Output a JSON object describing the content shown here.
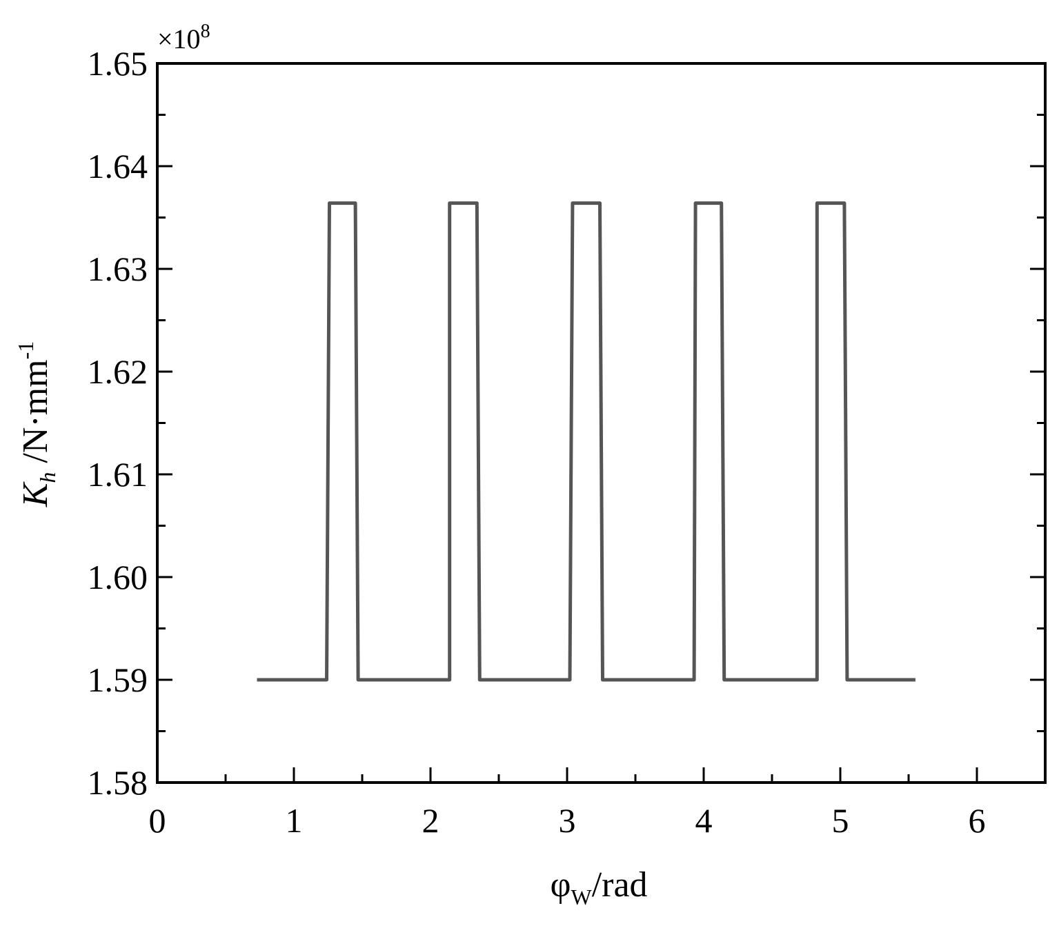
{
  "chart_data": {
    "type": "line",
    "title": "",
    "xlabel": {
      "base": "φ",
      "sub": "W",
      "rest": "/rad"
    },
    "ylabel": {
      "base": "K",
      "sub": "h",
      "rest": " /N·mm",
      "sup": "-1"
    },
    "y_multiplier": {
      "prefix": "×10",
      "exp": "8"
    },
    "xlim": [
      0,
      6.5
    ],
    "ylim": [
      1.58,
      1.65
    ],
    "x_ticks": [
      0,
      1,
      2,
      3,
      4,
      5,
      6
    ],
    "x_tick_labels": [
      "0",
      "1",
      "2",
      "3",
      "4",
      "5",
      "6"
    ],
    "x_minor_ticks": [
      0.5,
      1.5,
      2.5,
      3.5,
      4.5,
      5.5
    ],
    "y_ticks": [
      1.58,
      1.59,
      1.6,
      1.61,
      1.62,
      1.63,
      1.64,
      1.65
    ],
    "y_tick_labels": [
      "1.58",
      "1.59",
      "1.60",
      "1.61",
      "1.62",
      "1.63",
      "1.64",
      "1.65"
    ],
    "y_minor_ticks": [
      1.585,
      1.595,
      1.605,
      1.615,
      1.625,
      1.635,
      1.645
    ],
    "grid": false,
    "line_color": "#555555",
    "series": [
      {
        "x": [
          0.73,
          1.24,
          1.26,
          1.45,
          1.47,
          2.14,
          2.14,
          2.34,
          2.36,
          3.02,
          3.04,
          3.24,
          3.26,
          3.93,
          3.94,
          4.13,
          4.15,
          4.83,
          4.83,
          5.03,
          5.05,
          5.55
        ],
        "y": [
          1.59,
          1.59,
          1.6364,
          1.6364,
          1.59,
          1.59,
          1.6364,
          1.6364,
          1.59,
          1.59,
          1.6364,
          1.6364,
          1.59,
          1.59,
          1.6364,
          1.6364,
          1.59,
          1.59,
          1.6364,
          1.6364,
          1.59,
          1.59
        ]
      }
    ]
  }
}
